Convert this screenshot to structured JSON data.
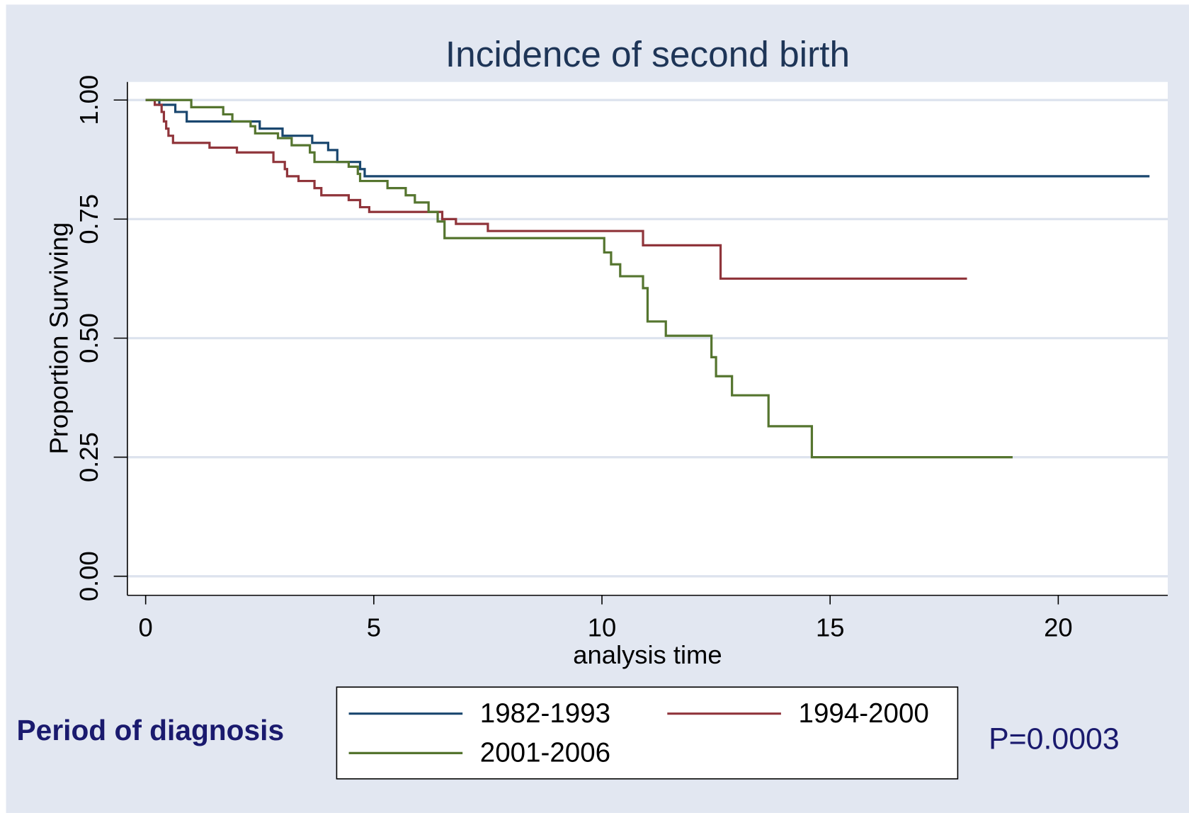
{
  "chart_data": {
    "type": "step",
    "title": "Incidence of second birth",
    "xlabel": "analysis time",
    "ylabel": "Proportion Surviving",
    "legend_title": "Period of diagnosis",
    "annotation": "P=0.0003",
    "xlim": [
      -0.4,
      22.4
    ],
    "ylim": [
      -0.04,
      1.038
    ],
    "xticks": [
      0,
      5,
      10,
      15,
      20
    ],
    "yticks": [
      {
        "value": 0,
        "label": "0.00"
      },
      0.25,
      {
        "value": 0.5,
        "label": "0.50"
      },
      0.75,
      {
        "value": 1,
        "label": "1.00"
      }
    ],
    "grid": true,
    "legend": "bottom",
    "series": [
      {
        "name": "1982-1993",
        "color": "#1a476f",
        "x": [
          0,
          0.3,
          0.65,
          0.9,
          2.5,
          3.0,
          3.65,
          4.0,
          4.2,
          4.7,
          4.8,
          22.0
        ],
        "values": [
          1,
          0.99,
          0.975,
          0.955,
          0.94,
          0.925,
          0.91,
          0.895,
          0.87,
          0.855,
          0.84,
          0.84
        ]
      },
      {
        "name": "1994-2000",
        "color": "#90353b",
        "x": [
          0,
          0.2,
          0.35,
          0.4,
          0.45,
          0.5,
          0.6,
          1.4,
          2.0,
          2.8,
          3.05,
          3.1,
          3.35,
          3.7,
          3.85,
          4.45,
          4.7,
          4.9,
          6.5,
          6.8,
          7.5,
          10.9,
          12.6,
          18.0
        ],
        "values": [
          1,
          0.99,
          0.975,
          0.955,
          0.94,
          0.925,
          0.91,
          0.9,
          0.89,
          0.87,
          0.855,
          0.84,
          0.83,
          0.815,
          0.8,
          0.79,
          0.775,
          0.765,
          0.75,
          0.74,
          0.725,
          0.695,
          0.625,
          0.625
        ]
      },
      {
        "name": "2001-2006",
        "color": "#55752f",
        "x": [
          0,
          1.0,
          1.7,
          1.9,
          2.3,
          2.4,
          2.9,
          3.2,
          3.6,
          3.7,
          4.45,
          4.65,
          4.7,
          5.3,
          5.7,
          5.9,
          6.2,
          6.4,
          6.55,
          10.05,
          10.2,
          10.4,
          10.9,
          11.0,
          11.4,
          12.4,
          12.5,
          12.85,
          13.65,
          14.6,
          19.0
        ],
        "values": [
          1,
          0.985,
          0.97,
          0.955,
          0.945,
          0.93,
          0.92,
          0.905,
          0.89,
          0.87,
          0.86,
          0.845,
          0.83,
          0.815,
          0.8,
          0.785,
          0.765,
          0.745,
          0.71,
          0.68,
          0.655,
          0.63,
          0.605,
          0.535,
          0.505,
          0.46,
          0.42,
          0.38,
          0.315,
          0.25,
          0.25
        ]
      }
    ]
  }
}
